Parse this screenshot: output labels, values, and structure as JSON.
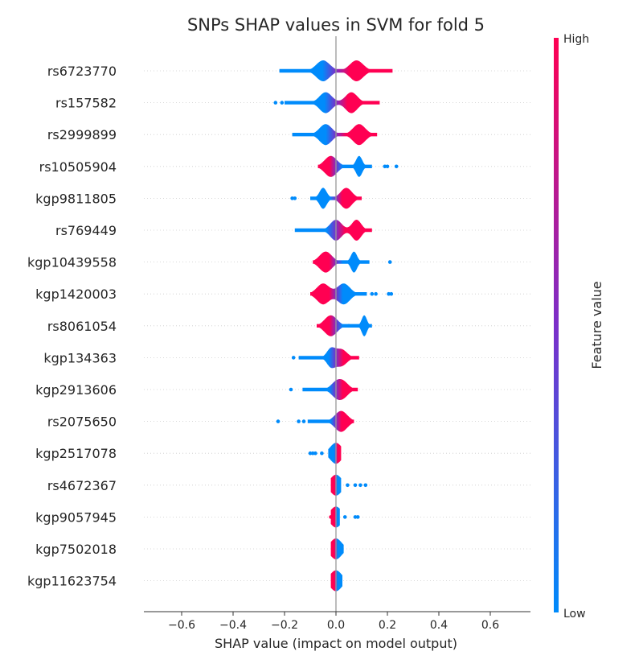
{
  "chart_data": {
    "type": "violin",
    "title": "SNPs SHAP values in SVM for fold 5",
    "xlabel": "SHAP value (impact on model output)",
    "ylabel": "",
    "xlim": [
      -0.75,
      0.75
    ],
    "xticks": [
      -0.6,
      -0.4,
      -0.2,
      0.0,
      0.2,
      0.4,
      0.6
    ],
    "xtick_labels": [
      "−0.6",
      "−0.4",
      "−0.2",
      "0.0",
      "0.2",
      "0.4",
      "0.6"
    ],
    "grid": false,
    "colorbar": {
      "label": "Feature value",
      "high_label": "High",
      "low_label": "Low",
      "high_color": "#ff0052",
      "mid_color": "#7b2fc9",
      "low_color": "#008bfb"
    },
    "features": [
      {
        "name": "rs6723770",
        "range": [
          -0.22,
          0.22
        ],
        "negative_side": "low",
        "outliers": [],
        "bulges": [
          [
            -0.05,
            0.026
          ],
          [
            0.08,
            0.026
          ]
        ]
      },
      {
        "name": "rs157582",
        "range": [
          -0.2,
          0.17
        ],
        "negative_side": "low",
        "outliers": [
          -0.235,
          -0.21
        ],
        "bulges": [
          [
            -0.04,
            0.024
          ],
          [
            0.06,
            0.023
          ]
        ]
      },
      {
        "name": "rs2999899",
        "range": [
          -0.17,
          0.16
        ],
        "negative_side": "low",
        "outliers": [],
        "bulges": [
          [
            -0.04,
            0.024
          ],
          [
            0.09,
            0.024
          ]
        ]
      },
      {
        "name": "rs10505904",
        "range": [
          -0.07,
          0.14
        ],
        "negative_side": "high",
        "outliers": [
          0.19,
          0.2,
          0.235
        ],
        "bulges": [
          [
            -0.02,
            0.024
          ],
          [
            0.09,
            0.012
          ]
        ]
      },
      {
        "name": "kgp9811805",
        "range": [
          -0.1,
          0.1
        ],
        "negative_side": "low",
        "outliers": [
          -0.17,
          -0.16
        ],
        "bulges": [
          [
            -0.05,
            0.014
          ],
          [
            0.04,
            0.022
          ]
        ]
      },
      {
        "name": "rs769449",
        "range": [
          -0.16,
          0.14
        ],
        "negative_side": "low",
        "outliers": [],
        "bulges": [
          [
            0.0,
            0.022
          ],
          [
            0.08,
            0.018
          ]
        ]
      },
      {
        "name": "kgp10439558",
        "range": [
          -0.09,
          0.13
        ],
        "negative_side": "high",
        "outliers": [
          0.21
        ],
        "bulges": [
          [
            -0.04,
            0.024
          ],
          [
            0.07,
            0.012
          ]
        ]
      },
      {
        "name": "kgp1420003",
        "range": [
          -0.1,
          0.12
        ],
        "negative_side": "high",
        "outliers": [
          0.14,
          0.155,
          0.205,
          0.215
        ],
        "bulges": [
          [
            -0.05,
            0.024
          ],
          [
            0.03,
            0.024
          ]
        ]
      },
      {
        "name": "rs8061054",
        "range": [
          -0.075,
          0.14
        ],
        "negative_side": "high",
        "outliers": [
          0.05
        ],
        "bulges": [
          [
            -0.02,
            0.024
          ],
          [
            0.11,
            0.01
          ]
        ]
      },
      {
        "name": "kgp134363",
        "range": [
          -0.145,
          0.09
        ],
        "negative_side": "low",
        "outliers": [
          -0.165
        ],
        "bulges": [
          [
            -0.02,
            0.016
          ],
          [
            0.02,
            0.022
          ]
        ]
      },
      {
        "name": "kgp2913606",
        "range": [
          -0.13,
          0.085
        ],
        "negative_side": "low",
        "outliers": [
          -0.175
        ],
        "bulges": [
          [
            0.0,
            0.02
          ],
          [
            0.03,
            0.02
          ]
        ]
      },
      {
        "name": "rs2075650",
        "range": [
          -0.11,
          0.07
        ],
        "negative_side": "low",
        "outliers": [
          -0.225,
          -0.145,
          -0.125
        ],
        "bulges": [
          [
            0.02,
            0.024
          ]
        ]
      },
      {
        "name": "kgp2517078",
        "range": [
          -0.03,
          0.02
        ],
        "negative_side": "low",
        "outliers": [
          -0.1,
          -0.09,
          -0.08,
          -0.055
        ],
        "bulges": [
          [
            0.0,
            0.022
          ]
        ]
      },
      {
        "name": "rs4672367",
        "range": [
          -0.02,
          0.02
        ],
        "negative_side": "high",
        "outliers": [
          0.045,
          0.075,
          0.095,
          0.115
        ],
        "bulges": [
          [
            0.0,
            0.022
          ]
        ]
      },
      {
        "name": "kgp9057945",
        "range": [
          -0.02,
          0.015
        ],
        "negative_side": "high",
        "outliers": [
          -0.02,
          0.035,
          0.075,
          0.085
        ],
        "bulges": [
          [
            0.0,
            0.022
          ]
        ]
      },
      {
        "name": "kgp7502018",
        "range": [
          -0.02,
          0.03
        ],
        "negative_side": "high",
        "outliers": [],
        "bulges": [
          [
            0.0,
            0.022
          ]
        ]
      },
      {
        "name": "kgp11623754",
        "range": [
          -0.02,
          0.025
        ],
        "negative_side": "high",
        "outliers": [],
        "bulges": [
          [
            0.0,
            0.022
          ]
        ]
      }
    ]
  }
}
